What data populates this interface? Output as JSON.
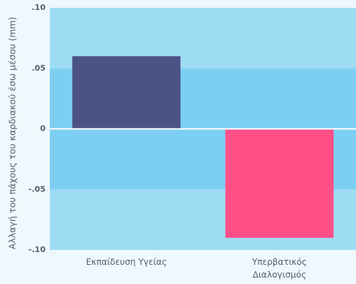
{
  "colors": {
    "page_bg": "#eef8fd",
    "band_light": "#9edcf4",
    "band_dark": "#7dcff2",
    "zero_line": "#ffffff",
    "text": "#4e5f70"
  },
  "chart_data": {
    "type": "bar",
    "title": "",
    "xlabel": "",
    "ylabel": "Αλλαγή του πάχους του καρδιακού έσω μέσου (mm)",
    "ylim": [
      -0.1,
      0.1
    ],
    "yticks": [
      0.1,
      0.05,
      0,
      -0.05,
      -0.1
    ],
    "ytick_labels": [
      ".10",
      ".05",
      "0",
      "-.05",
      "-.10"
    ],
    "grid": "alternating horizontal bands",
    "legend": "none",
    "categories": [
      [
        "Εκπαίδευση Υγείας"
      ],
      [
        "Υπερβατικός",
        "Διαλογισμός"
      ]
    ],
    "values": [
      0.06,
      -0.09
    ],
    "bar_colors": [
      "#4a5286",
      "#ff4f87"
    ]
  }
}
